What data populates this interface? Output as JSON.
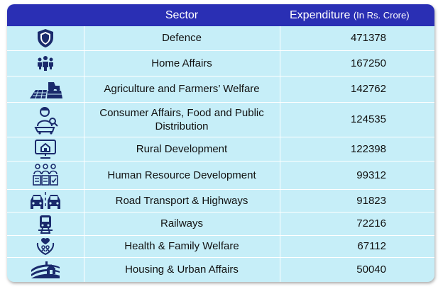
{
  "header": {
    "sector_label": "Sector",
    "expenditure_label": "Expenditure",
    "expenditure_unit": "(In Rs. Crore)"
  },
  "rows": [
    {
      "icon": "shield-icon",
      "sector": "Defence",
      "value": "471378"
    },
    {
      "icon": "people-group-icon",
      "sector": "Home Affairs",
      "value": "167250"
    },
    {
      "icon": "tractor-field-icon",
      "sector": "Agriculture and Farmers’ Welfare",
      "value": "142762"
    },
    {
      "icon": "shopper-cart-icon",
      "sector": "Consumer Affairs, Food and Public Distribution",
      "value": "124535"
    },
    {
      "icon": "house-board-icon",
      "sector": "Rural Development",
      "value": "122398"
    },
    {
      "icon": "workforce-icon",
      "sector": "Human Resource Development",
      "value": "99312"
    },
    {
      "icon": "road-vehicles-icon",
      "sector": "Road Transport & Highways",
      "value": "91823"
    },
    {
      "icon": "train-icon",
      "sector": "Railways",
      "value": "72216"
    },
    {
      "icon": "health-hands-icon",
      "sector": "Health & Family Welfare",
      "value": "67112"
    },
    {
      "icon": "housing-icon",
      "sector": "Housing & Urban Affairs",
      "value": "50040"
    }
  ]
}
